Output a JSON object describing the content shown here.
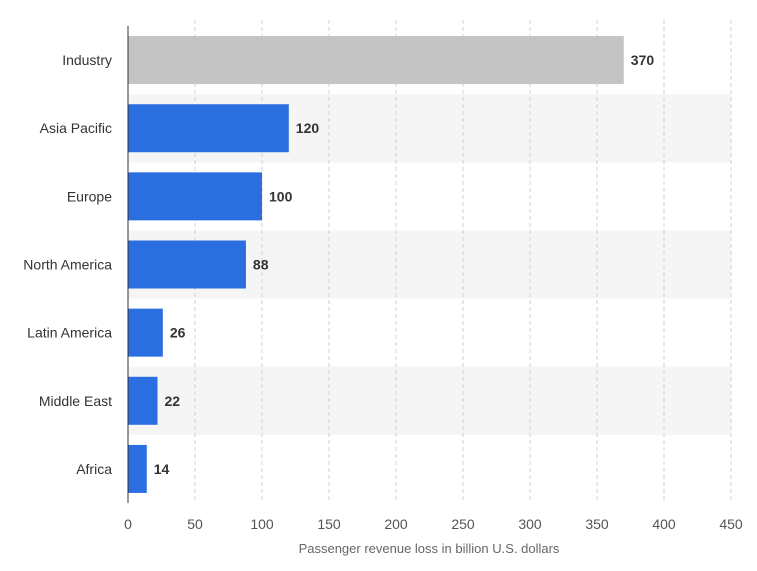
{
  "chart_data": {
    "type": "bar",
    "orientation": "horizontal",
    "categories": [
      "Industry",
      "Asia Pacific",
      "Europe",
      "North America",
      "Latin America",
      "Middle East",
      "Africa"
    ],
    "values": [
      370,
      120,
      100,
      88,
      26,
      22,
      14
    ],
    "value_labels": [
      "370",
      "120",
      "100",
      "88",
      "26",
      "22",
      "14"
    ],
    "bar_colors": [
      "#c4c4c4",
      "#2a6ee0",
      "#2a6ee0",
      "#2a6ee0",
      "#2a6ee0",
      "#2a6ee0",
      "#2a6ee0"
    ],
    "xlabel": "Passenger revenue loss in billion U.S. dollars",
    "xlim": [
      0,
      450
    ],
    "xticks": [
      0,
      50,
      100,
      150,
      200,
      250,
      300,
      350,
      400,
      450
    ],
    "xtick_labels": [
      "0",
      "50",
      "100",
      "150",
      "200",
      "250",
      "300",
      "350",
      "400",
      "450"
    ],
    "grid": true,
    "alternate_row_shading": true
  }
}
